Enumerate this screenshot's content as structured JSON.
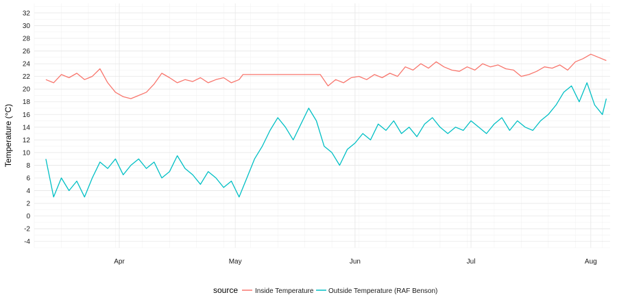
{
  "chart_data": {
    "type": "line",
    "title": "",
    "xlabel": "",
    "ylabel": "Temperature (°C)",
    "xlim": [
      "2020-03-10",
      "2020-08-06"
    ],
    "ylim": [
      -5,
      33.5
    ],
    "x_ticks": [
      {
        "date": "2020-04-01",
        "label": "Apr"
      },
      {
        "date": "2020-05-01",
        "label": "May"
      },
      {
        "date": "2020-06-01",
        "label": "Jun"
      },
      {
        "date": "2020-07-01",
        "label": "Jul"
      },
      {
        "date": "2020-08-01",
        "label": "Aug"
      }
    ],
    "y_ticks": [
      -4,
      -2,
      0,
      2,
      4,
      6,
      8,
      10,
      12,
      14,
      16,
      18,
      20,
      22,
      24,
      26,
      28,
      30,
      32
    ],
    "grid": true,
    "legend": {
      "title": "source",
      "position": "bottom"
    },
    "series": [
      {
        "name": "Inside Temperature",
        "color": "#F8766D",
        "points": [
          [
            "2020-03-13",
            21.5
          ],
          [
            "2020-03-15",
            21.0
          ],
          [
            "2020-03-17",
            22.3
          ],
          [
            "2020-03-19",
            21.8
          ],
          [
            "2020-03-21",
            22.5
          ],
          [
            "2020-03-23",
            21.5
          ],
          [
            "2020-03-25",
            22.0
          ],
          [
            "2020-03-27",
            23.2
          ],
          [
            "2020-03-29",
            21.0
          ],
          [
            "2020-03-31",
            19.5
          ],
          [
            "2020-04-02",
            18.8
          ],
          [
            "2020-04-04",
            18.5
          ],
          [
            "2020-04-06",
            19.0
          ],
          [
            "2020-04-08",
            19.5
          ],
          [
            "2020-04-10",
            20.8
          ],
          [
            "2020-04-12",
            22.5
          ],
          [
            "2020-04-14",
            21.8
          ],
          [
            "2020-04-16",
            21.0
          ],
          [
            "2020-04-18",
            21.5
          ],
          [
            "2020-04-20",
            21.2
          ],
          [
            "2020-04-22",
            21.8
          ],
          [
            "2020-04-24",
            21.0
          ],
          [
            "2020-04-26",
            21.5
          ],
          [
            "2020-04-28",
            21.8
          ],
          [
            "2020-04-30",
            21.0
          ],
          [
            "2020-05-02",
            21.5
          ],
          [
            "2020-05-03",
            22.3
          ],
          [
            "2020-05-05",
            22.3
          ],
          [
            "2020-05-10",
            22.3
          ],
          [
            "2020-05-15",
            22.3
          ],
          [
            "2020-05-20",
            22.3
          ],
          [
            "2020-05-23",
            22.3
          ],
          [
            "2020-05-25",
            20.5
          ],
          [
            "2020-05-27",
            21.5
          ],
          [
            "2020-05-29",
            21.0
          ],
          [
            "2020-05-31",
            21.8
          ],
          [
            "2020-06-02",
            22.0
          ],
          [
            "2020-06-04",
            21.5
          ],
          [
            "2020-06-06",
            22.3
          ],
          [
            "2020-06-08",
            21.8
          ],
          [
            "2020-06-10",
            22.5
          ],
          [
            "2020-06-12",
            22.0
          ],
          [
            "2020-06-14",
            23.5
          ],
          [
            "2020-06-16",
            23.0
          ],
          [
            "2020-06-18",
            24.0
          ],
          [
            "2020-06-20",
            23.3
          ],
          [
            "2020-06-22",
            24.3
          ],
          [
            "2020-06-24",
            23.5
          ],
          [
            "2020-06-26",
            23.0
          ],
          [
            "2020-06-28",
            22.8
          ],
          [
            "2020-06-30",
            23.5
          ],
          [
            "2020-07-02",
            23.0
          ],
          [
            "2020-07-04",
            24.0
          ],
          [
            "2020-07-06",
            23.5
          ],
          [
            "2020-07-08",
            23.8
          ],
          [
            "2020-07-10",
            23.2
          ],
          [
            "2020-07-12",
            23.0
          ],
          [
            "2020-07-14",
            22.0
          ],
          [
            "2020-07-16",
            22.3
          ],
          [
            "2020-07-18",
            22.8
          ],
          [
            "2020-07-20",
            23.5
          ],
          [
            "2020-07-22",
            23.3
          ],
          [
            "2020-07-24",
            23.8
          ],
          [
            "2020-07-26",
            23.0
          ],
          [
            "2020-07-28",
            24.3
          ],
          [
            "2020-07-30",
            24.8
          ],
          [
            "2020-08-01",
            25.5
          ],
          [
            "2020-08-03",
            25.0
          ],
          [
            "2020-08-05",
            24.5
          ]
        ]
      },
      {
        "name": "Outside Temperature (RAF Benson)",
        "color": "#00BFC4",
        "points": [
          [
            "2020-03-13",
            9.0
          ],
          [
            "2020-03-15",
            3.0
          ],
          [
            "2020-03-17",
            6.0
          ],
          [
            "2020-03-19",
            4.0
          ],
          [
            "2020-03-21",
            5.5
          ],
          [
            "2020-03-23",
            3.0
          ],
          [
            "2020-03-25",
            6.0
          ],
          [
            "2020-03-27",
            8.5
          ],
          [
            "2020-03-29",
            7.5
          ],
          [
            "2020-03-31",
            9.0
          ],
          [
            "2020-04-02",
            6.5
          ],
          [
            "2020-04-04",
            8.0
          ],
          [
            "2020-04-06",
            9.0
          ],
          [
            "2020-04-08",
            7.5
          ],
          [
            "2020-04-10",
            8.5
          ],
          [
            "2020-04-12",
            6.0
          ],
          [
            "2020-04-14",
            7.0
          ],
          [
            "2020-04-16",
            9.5
          ],
          [
            "2020-04-18",
            7.5
          ],
          [
            "2020-04-20",
            6.5
          ],
          [
            "2020-04-22",
            5.0
          ],
          [
            "2020-04-24",
            7.0
          ],
          [
            "2020-04-26",
            6.0
          ],
          [
            "2020-04-28",
            4.5
          ],
          [
            "2020-04-30",
            5.5
          ],
          [
            "2020-05-02",
            3.0
          ],
          [
            "2020-05-04",
            6.0
          ],
          [
            "2020-05-06",
            9.0
          ],
          [
            "2020-05-08",
            11.0
          ],
          [
            "2020-05-10",
            13.5
          ],
          [
            "2020-05-12",
            15.5
          ],
          [
            "2020-05-14",
            14.0
          ],
          [
            "2020-05-16",
            12.0
          ],
          [
            "2020-05-18",
            14.5
          ],
          [
            "2020-05-20",
            17.0
          ],
          [
            "2020-05-22",
            15.0
          ],
          [
            "2020-05-24",
            11.0
          ],
          [
            "2020-05-26",
            10.0
          ],
          [
            "2020-05-28",
            8.0
          ],
          [
            "2020-05-30",
            10.5
          ],
          [
            "2020-06-01",
            11.5
          ],
          [
            "2020-06-03",
            13.0
          ],
          [
            "2020-06-05",
            12.0
          ],
          [
            "2020-06-07",
            14.5
          ],
          [
            "2020-06-09",
            13.5
          ],
          [
            "2020-06-11",
            15.0
          ],
          [
            "2020-06-13",
            13.0
          ],
          [
            "2020-06-15",
            14.0
          ],
          [
            "2020-06-17",
            12.5
          ],
          [
            "2020-06-19",
            14.5
          ],
          [
            "2020-06-21",
            15.5
          ],
          [
            "2020-06-23",
            14.0
          ],
          [
            "2020-06-25",
            13.0
          ],
          [
            "2020-06-27",
            14.0
          ],
          [
            "2020-06-29",
            13.5
          ],
          [
            "2020-07-01",
            15.0
          ],
          [
            "2020-07-03",
            14.0
          ],
          [
            "2020-07-05",
            13.0
          ],
          [
            "2020-07-07",
            14.5
          ],
          [
            "2020-07-09",
            15.5
          ],
          [
            "2020-07-11",
            13.5
          ],
          [
            "2020-07-13",
            15.0
          ],
          [
            "2020-07-15",
            14.0
          ],
          [
            "2020-07-17",
            13.5
          ],
          [
            "2020-07-19",
            15.0
          ],
          [
            "2020-07-21",
            16.0
          ],
          [
            "2020-07-23",
            17.5
          ],
          [
            "2020-07-25",
            19.5
          ],
          [
            "2020-07-27",
            20.5
          ],
          [
            "2020-07-29",
            18.0
          ],
          [
            "2020-07-31",
            21.0
          ],
          [
            "2020-08-02",
            17.5
          ],
          [
            "2020-08-04",
            16.0
          ],
          [
            "2020-08-05",
            18.5
          ]
        ]
      }
    ]
  }
}
